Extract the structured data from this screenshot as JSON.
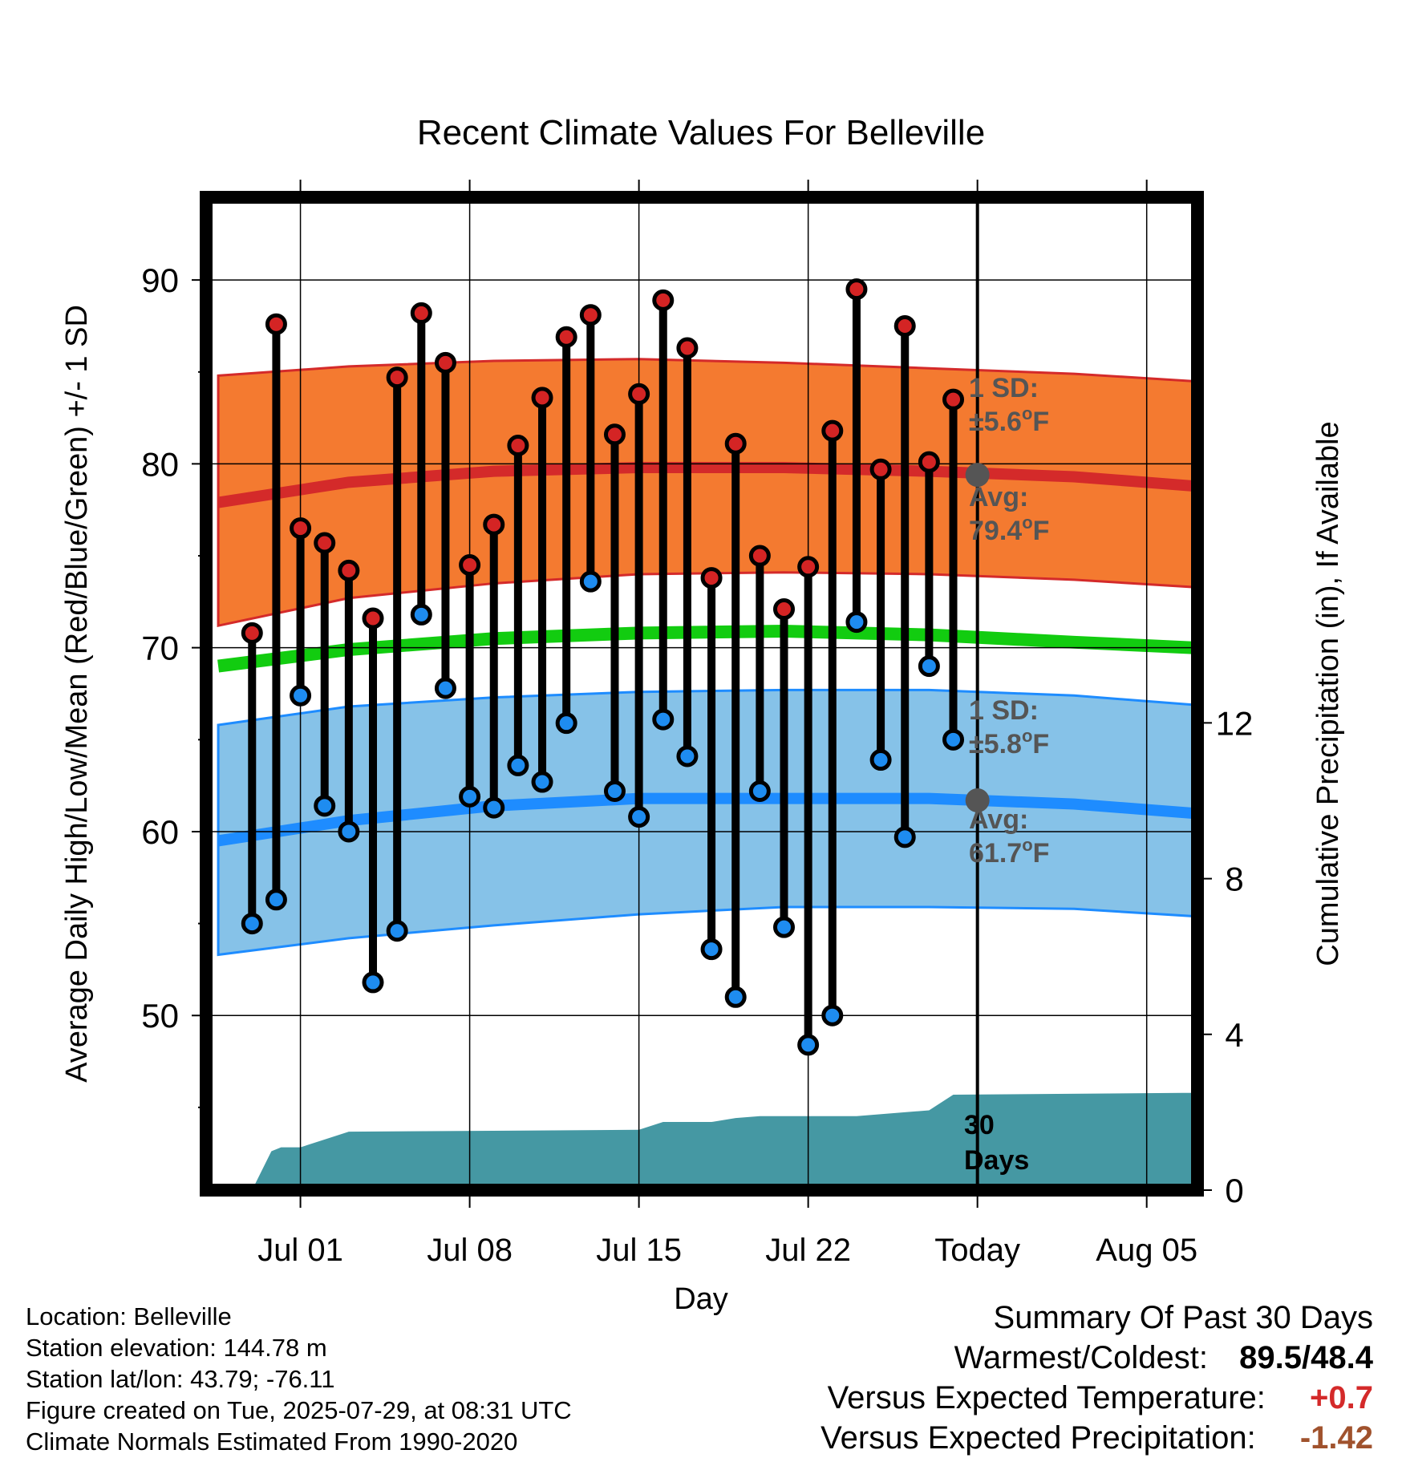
{
  "chart_data": {
    "type": "line",
    "title": "Recent Climate Values For Belleville",
    "xlabel": "Day",
    "ylabel_left": "Average Daily High/Low/Mean (Red/Blue/Green) +/- 1 SD",
    "ylabel_right": "Cumulative Precipitation (in), If Available",
    "x_ticks": [
      "Jul 01",
      "Jul 08",
      "Jul 15",
      "Jul 22",
      "Today",
      "Aug 05"
    ],
    "x_tick_days": [
      1,
      8,
      15,
      22,
      29,
      36
    ],
    "xlim": [
      -2.9,
      38.1
    ],
    "y_left_ticks": [
      50,
      60,
      70,
      80,
      90
    ],
    "ylim_left": [
      40.5,
      94.5
    ],
    "y_right_ticks": [
      0,
      4,
      8,
      12
    ],
    "ylim_right": [
      0,
      25.5
    ],
    "grid": true,
    "today_day": 29,
    "normals": {
      "days": [
        -2.4,
        3,
        9,
        15,
        21,
        27,
        33,
        37.9
      ],
      "high_avg": [
        77.9,
        79.0,
        79.6,
        79.8,
        79.8,
        79.6,
        79.3,
        78.8
      ],
      "high_sd_upper": [
        84.8,
        85.3,
        85.6,
        85.7,
        85.5,
        85.2,
        84.9,
        84.5
      ],
      "high_sd_lower": [
        71.2,
        72.7,
        73.5,
        74.0,
        74.1,
        74.0,
        73.7,
        73.3
      ],
      "mean_avg": [
        69.0,
        69.9,
        70.5,
        70.8,
        70.9,
        70.7,
        70.3,
        70.0
      ],
      "low_avg": [
        59.5,
        60.6,
        61.4,
        61.8,
        61.8,
        61.8,
        61.5,
        61.0
      ],
      "low_sd_upper": [
        65.8,
        66.8,
        67.3,
        67.6,
        67.7,
        67.7,
        67.4,
        66.9
      ],
      "low_sd_lower": [
        53.3,
        54.2,
        54.9,
        55.5,
        55.9,
        55.9,
        55.8,
        55.4
      ]
    },
    "daily": {
      "days": [
        -1,
        0,
        1,
        2,
        3,
        4,
        5,
        6,
        7,
        8,
        9,
        10,
        11,
        12,
        13,
        14,
        15,
        16,
        17,
        18,
        19,
        20,
        21,
        22,
        23,
        24,
        25,
        26,
        27,
        28
      ],
      "high": [
        70.8,
        87.6,
        76.5,
        75.7,
        74.2,
        71.6,
        84.7,
        88.2,
        85.5,
        74.5,
        76.7,
        81.0,
        83.6,
        86.9,
        88.1,
        81.6,
        83.8,
        88.9,
        86.3,
        73.8,
        81.1,
        75.0,
        72.1,
        74.4,
        81.8,
        89.5,
        79.7,
        87.5,
        80.1,
        83.5
      ],
      "low": [
        55.0,
        56.3,
        67.4,
        61.4,
        60.0,
        51.8,
        54.6,
        71.8,
        67.8,
        61.9,
        61.3,
        63.6,
        62.7,
        65.9,
        73.6,
        62.2,
        60.8,
        66.1,
        64.1,
        53.6,
        51.0,
        62.2,
        54.8,
        48.4,
        50.0,
        71.4,
        63.9,
        59.7,
        69.0,
        65.0
      ]
    },
    "precip_cumulative": {
      "days": [
        -2.0,
        -1.0,
        -0.2,
        0.2,
        1.0,
        2.0,
        3.0,
        15.0,
        16.0,
        17.0,
        18.0,
        19.0,
        20.0,
        24.0,
        26.0,
        27.0,
        28.0,
        38.0
      ],
      "values": [
        0.0,
        0.0,
        1.0,
        1.1,
        1.1,
        1.3,
        1.5,
        1.55,
        1.75,
        1.75,
        1.75,
        1.85,
        1.9,
        1.9,
        2.0,
        2.05,
        2.45,
        2.5
      ]
    },
    "annotations": {
      "high_sd_label": "1 SD:",
      "high_sd_value": "±5.6",
      "high_avg_label": "Avg:",
      "high_avg_value": "79.4",
      "low_sd_label": "1 SD:",
      "low_sd_value": "±5.8",
      "low_avg_label": "Avg:",
      "low_avg_value": "61.7",
      "degree_unit_sup": "o",
      "degree_unit": "F",
      "precip_window_line1": "30",
      "precip_window_line2": "Days"
    },
    "colors": {
      "high_band": "#f47a30",
      "high_avg": "#d42a2a",
      "low_band": "#86c2e8",
      "low_avg": "#1e8cff",
      "mean_avg": "#12cc10",
      "precip": "#4598a3",
      "high_marker": "#d42424",
      "low_marker": "#1e8cf0",
      "annotation": "#555555"
    }
  },
  "footer": {
    "location": "Location: Belleville",
    "elevation": "Station elevation: 144.78 m",
    "latlon": "Station lat/lon: 43.79; -76.11",
    "created": "Figure created on Tue, 2025-07-29, at 08:31 UTC",
    "normals": "Climate Normals Estimated From 1990-2020"
  },
  "summary": {
    "title": "Summary Of Past 30 Days",
    "warmest_label": "Warmest/Coldest:",
    "warmest_value": "89.5",
    "slash": "/",
    "coldest_value": "48.4",
    "temp_label": "Versus Expected Temperature:",
    "temp_value": "+0.7",
    "temp_color": "#d42a2a",
    "precip_label": "Versus Expected Precipitation:",
    "precip_value": "-1.42",
    "precip_color": "#a0522d"
  }
}
